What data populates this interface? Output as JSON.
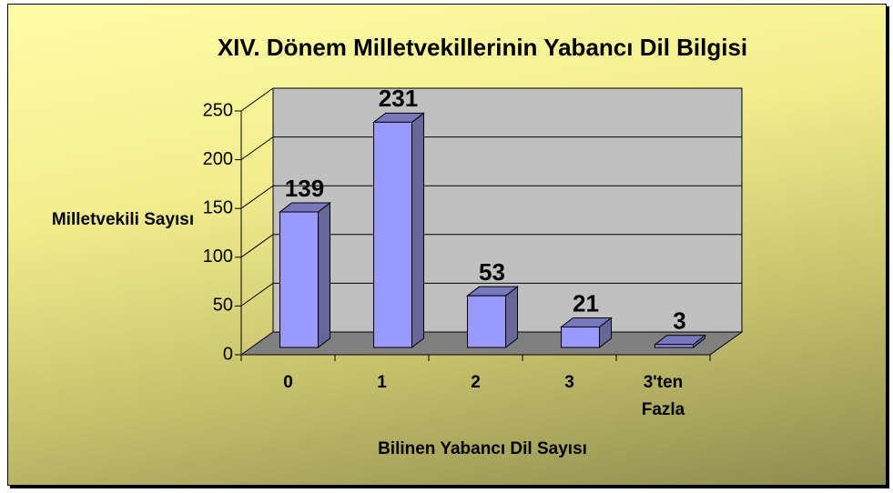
{
  "chart_data": {
    "type": "bar3d",
    "title": "XIV. Dönem Milletvekillerinin Yabancı Dil Bilgisi",
    "x_label": "Bilinen Yabancı Dil Sayısı",
    "y_label": "Milletvekili Sayısı",
    "categories": [
      "0",
      "1",
      "2",
      "3",
      "3'ten Fazla"
    ],
    "values": [
      139,
      231,
      53,
      21,
      3
    ],
    "color": "#9999ff",
    "ylim": [
      0,
      250
    ],
    "yticks": [
      0,
      50,
      100,
      150,
      200,
      250
    ],
    "grid": true
  }
}
